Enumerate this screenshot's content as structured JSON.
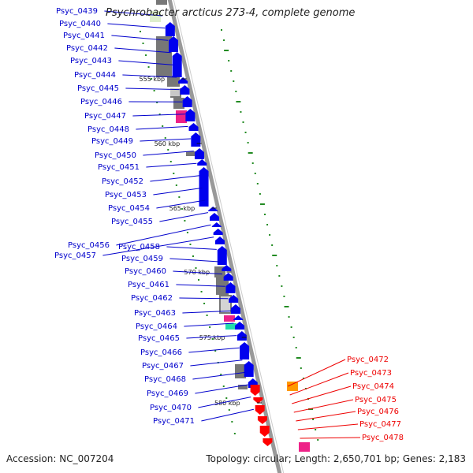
{
  "title": "Psychrobacter arcticus 273-4, complete genome",
  "accession": "Accession: NC_007204",
  "summary": "Topology: circular; Length: 2,650,701 bp; Genes: 2,183",
  "colors": {
    "left_labels": "#0000cc",
    "right_labels": "#ee0000",
    "cds": "#0000ee",
    "cds_right": "#ff0000",
    "backbone": "#999999",
    "ticks": "#228b22",
    "gray_feature": "#777777",
    "pink_feature": "#ee2288",
    "orange_feature": "#ff9900",
    "teal_feature": "#22ddaa"
  },
  "kbp_markers": [
    "555 kbp",
    "560 kbp",
    "565 kbp",
    "570 kbp",
    "575 kbp",
    "580 kbp"
  ],
  "genes_left": [
    "Psyc_0439",
    "Psyc_0440",
    "Psyc_0441",
    "Psyc_0442",
    "Psyc_0443",
    "Psyc_0444",
    "Psyc_0445",
    "Psyc_0446",
    "Psyc_0447",
    "Psyc_0448",
    "Psyc_0449",
    "Psyc_0450",
    "Psyc_0451",
    "Psyc_0452",
    "Psyc_0453",
    "Psyc_0454",
    "Psyc_0455",
    "Psyc_0456",
    "Psyc_0457",
    "Psyc_0458",
    "Psyc_0459",
    "Psyc_0460",
    "Psyc_0461",
    "Psyc_0462",
    "Psyc_0463",
    "Psyc_0464",
    "Psyc_0465",
    "Psyc_0466",
    "Psyc_0467",
    "Psyc_0468",
    "Psyc_0469",
    "Psyc_0470",
    "Psyc_0471"
  ],
  "genes_right": [
    "Psyc_0472",
    "Psyc_0473",
    "Psyc_0474",
    "Psyc_0475",
    "Psyc_0476",
    "Psyc_0477",
    "Psyc_0478"
  ]
}
